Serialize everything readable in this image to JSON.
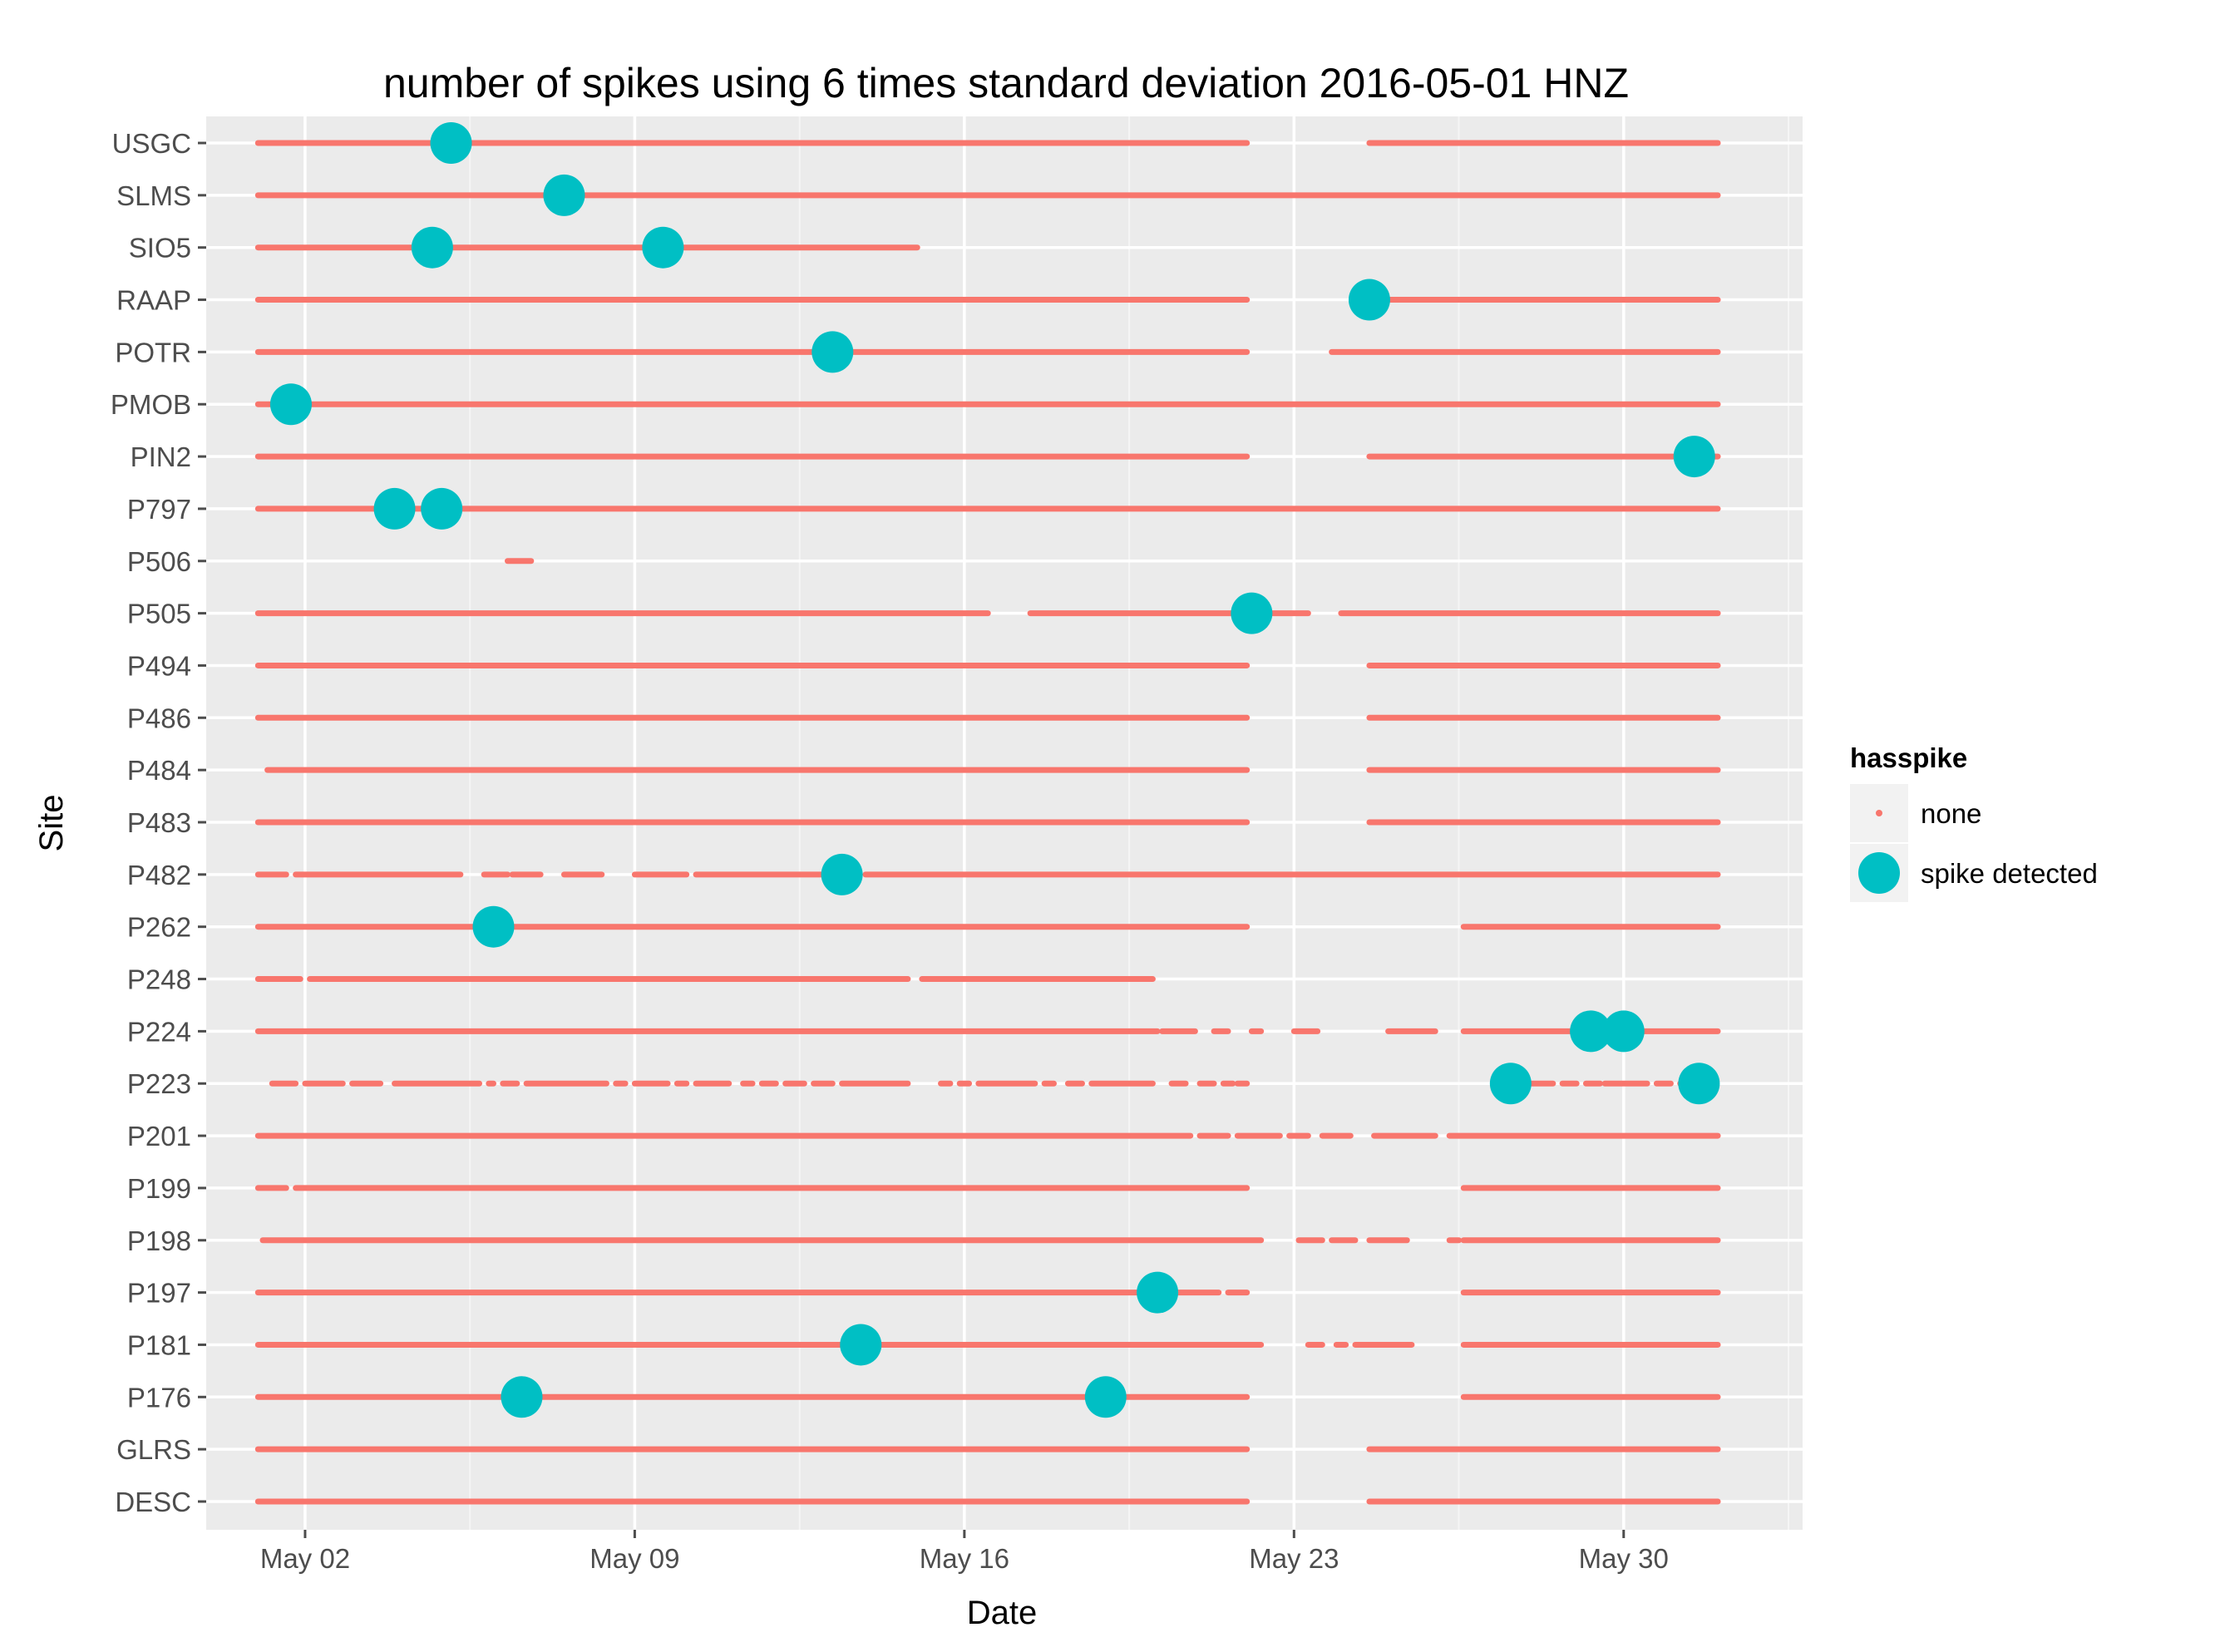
{
  "chart_data": {
    "type": "scatter",
    "title": "number of spikes using  6 times standard deviation 2016-05-01 HNZ",
    "xlabel": "Date",
    "ylabel": "Site",
    "x_ticks": [
      {
        "day": 2,
        "label": "May 02"
      },
      {
        "day": 9,
        "label": "May 09"
      },
      {
        "day": 16,
        "label": "May 16"
      },
      {
        "day": 23,
        "label": "May 23"
      },
      {
        "day": 30,
        "label": "May 30"
      }
    ],
    "xlim_days": [
      -0.1,
      33.8
    ],
    "sites": [
      "USGC",
      "SLMS",
      "SIO5",
      "RAAP",
      "POTR",
      "PMOB",
      "PIN2",
      "P797",
      "P506",
      "P505",
      "P494",
      "P486",
      "P484",
      "P483",
      "P482",
      "P262",
      "P248",
      "P224",
      "P223",
      "P201",
      "P199",
      "P198",
      "P197",
      "P181",
      "P176",
      "GLRS",
      "DESC"
    ],
    "legend": {
      "title": "hasspike",
      "entries": [
        {
          "label": "none",
          "color": "#F8766D"
        },
        {
          "label": "spike detected",
          "color": "#00BFC4"
        }
      ]
    },
    "series": [
      {
        "name": "none",
        "site_segments": {
          "USGC": [
            [
              1,
              22
            ],
            [
              24.6,
              32
            ]
          ],
          "SLMS": [
            [
              1,
              32
            ]
          ],
          "SIO5": [
            [
              1,
              15
            ]
          ],
          "RAAP": [
            [
              1,
              22
            ],
            [
              24.6,
              32
            ]
          ],
          "POTR": [
            [
              1,
              22
            ],
            [
              23.8,
              32
            ]
          ],
          "PMOB": [
            [
              1,
              32
            ]
          ],
          "PIN2": [
            [
              1,
              22
            ],
            [
              24.6,
              32
            ]
          ],
          "P797": [
            [
              1,
              32
            ]
          ],
          "P506": [
            [
              6.3,
              6.8
            ]
          ],
          "P505": [
            [
              1,
              16.5
            ],
            [
              17.4,
              23.3
            ],
            [
              24,
              32
            ]
          ],
          "P494": [
            [
              1,
              22
            ],
            [
              24.6,
              32
            ]
          ],
          "P486": [
            [
              1,
              22
            ],
            [
              24.6,
              32
            ]
          ],
          "P484": [
            [
              1.2,
              22
            ],
            [
              24.6,
              32
            ]
          ],
          "P483": [
            [
              1,
              22
            ],
            [
              24.6,
              32
            ]
          ],
          "P482": [
            [
              1,
              1.6
            ],
            [
              1.8,
              5.3
            ],
            [
              5.8,
              6.3
            ],
            [
              6.4,
              7
            ],
            [
              7.5,
              8.3
            ],
            [
              9,
              10.1
            ],
            [
              10.3,
              13.5
            ],
            [
              13.9,
              32
            ]
          ],
          "P262": [
            [
              1,
              22
            ],
            [
              26.6,
              32
            ]
          ],
          "P248": [
            [
              1,
              1.9
            ],
            [
              2.1,
              14.8
            ],
            [
              15.1,
              20
            ]
          ],
          "P224": [
            [
              1,
              20.1
            ],
            [
              20.2,
              20.9
            ],
            [
              21.3,
              21.6
            ],
            [
              22.1,
              22.3
            ],
            [
              23,
              23.5
            ],
            [
              25,
              26
            ],
            [
              26.6,
              32
            ]
          ],
          "P223": [
            [
              1.3,
              1.8
            ],
            [
              2,
              2.8
            ],
            [
              3,
              3.6
            ],
            [
              3.9,
              5.7
            ],
            [
              5.9,
              6
            ],
            [
              6.2,
              6.5
            ],
            [
              6.7,
              8.4
            ],
            [
              8.6,
              8.8
            ],
            [
              9,
              9.7
            ],
            [
              9.9,
              10.1
            ],
            [
              10.3,
              11
            ],
            [
              11.3,
              11.5
            ],
            [
              11.7,
              12
            ],
            [
              12.2,
              12.6
            ],
            [
              12.8,
              13.2
            ],
            [
              13.4,
              14.8
            ],
            [
              15.5,
              15.7
            ],
            [
              15.9,
              16.1
            ],
            [
              16.3,
              17.5
            ],
            [
              17.7,
              17.9
            ],
            [
              18.2,
              18.5
            ],
            [
              18.7,
              20
            ],
            [
              20.4,
              20.7
            ],
            [
              21,
              21.3
            ],
            [
              21.5,
              21.7
            ],
            [
              21.8,
              22
            ],
            [
              27.7,
              28.5
            ],
            [
              28.7,
              29
            ],
            [
              29.2,
              29.5
            ],
            [
              29.6,
              30.5
            ],
            [
              30.7,
              31
            ],
            [
              31.2,
              31.8
            ]
          ],
          "P201": [
            [
              1,
              20.8
            ],
            [
              21,
              21.6
            ],
            [
              21.8,
              22.7
            ],
            [
              22.9,
              23.3
            ],
            [
              23.6,
              24.2
            ],
            [
              24.7,
              26
            ],
            [
              26.3,
              32
            ]
          ],
          "P199": [
            [
              1,
              1.6
            ],
            [
              1.8,
              22
            ],
            [
              26.6,
              32
            ]
          ],
          "P198": [
            [
              1.1,
              22.3
            ],
            [
              23.1,
              23.6
            ],
            [
              23.8,
              24.3
            ],
            [
              24.6,
              25.4
            ],
            [
              26.3,
              26.5
            ],
            [
              26.6,
              32
            ]
          ],
          "P197": [
            [
              1,
              21.4
            ],
            [
              21.6,
              22
            ],
            [
              26.6,
              32
            ]
          ],
          "P181": [
            [
              1,
              22.3
            ],
            [
              23.3,
              23.6
            ],
            [
              23.9,
              24.1
            ],
            [
              24.3,
              25.5
            ],
            [
              26.6,
              32
            ]
          ],
          "P176": [
            [
              1,
              22
            ],
            [
              26.6,
              32
            ]
          ],
          "GLRS": [
            [
              1,
              22
            ],
            [
              24.6,
              32
            ]
          ],
          "DESC": [
            [
              1,
              22
            ],
            [
              24.6,
              32
            ]
          ]
        }
      },
      {
        "name": "spike detected",
        "points": [
          {
            "site": "USGC",
            "day": 5.1
          },
          {
            "site": "SLMS",
            "day": 7.5
          },
          {
            "site": "SIO5",
            "day": 4.7
          },
          {
            "site": "SIO5",
            "day": 9.6
          },
          {
            "site": "RAAP",
            "day": 24.6
          },
          {
            "site": "POTR",
            "day": 13.2
          },
          {
            "site": "PMOB",
            "day": 1.7
          },
          {
            "site": "PIN2",
            "day": 31.5
          },
          {
            "site": "P797",
            "day": 3.9
          },
          {
            "site": "P797",
            "day": 4.9
          },
          {
            "site": "P505",
            "day": 22.1
          },
          {
            "site": "P482",
            "day": 13.4
          },
          {
            "site": "P262",
            "day": 6
          },
          {
            "site": "P224",
            "day": 29.3
          },
          {
            "site": "P224",
            "day": 30
          },
          {
            "site": "P223",
            "day": 27.6
          },
          {
            "site": "P223",
            "day": 31.6
          },
          {
            "site": "P197",
            "day": 20.1
          },
          {
            "site": "P181",
            "day": 13.8
          },
          {
            "site": "P176",
            "day": 6.6
          },
          {
            "site": "P176",
            "day": 19
          }
        ]
      }
    ]
  }
}
